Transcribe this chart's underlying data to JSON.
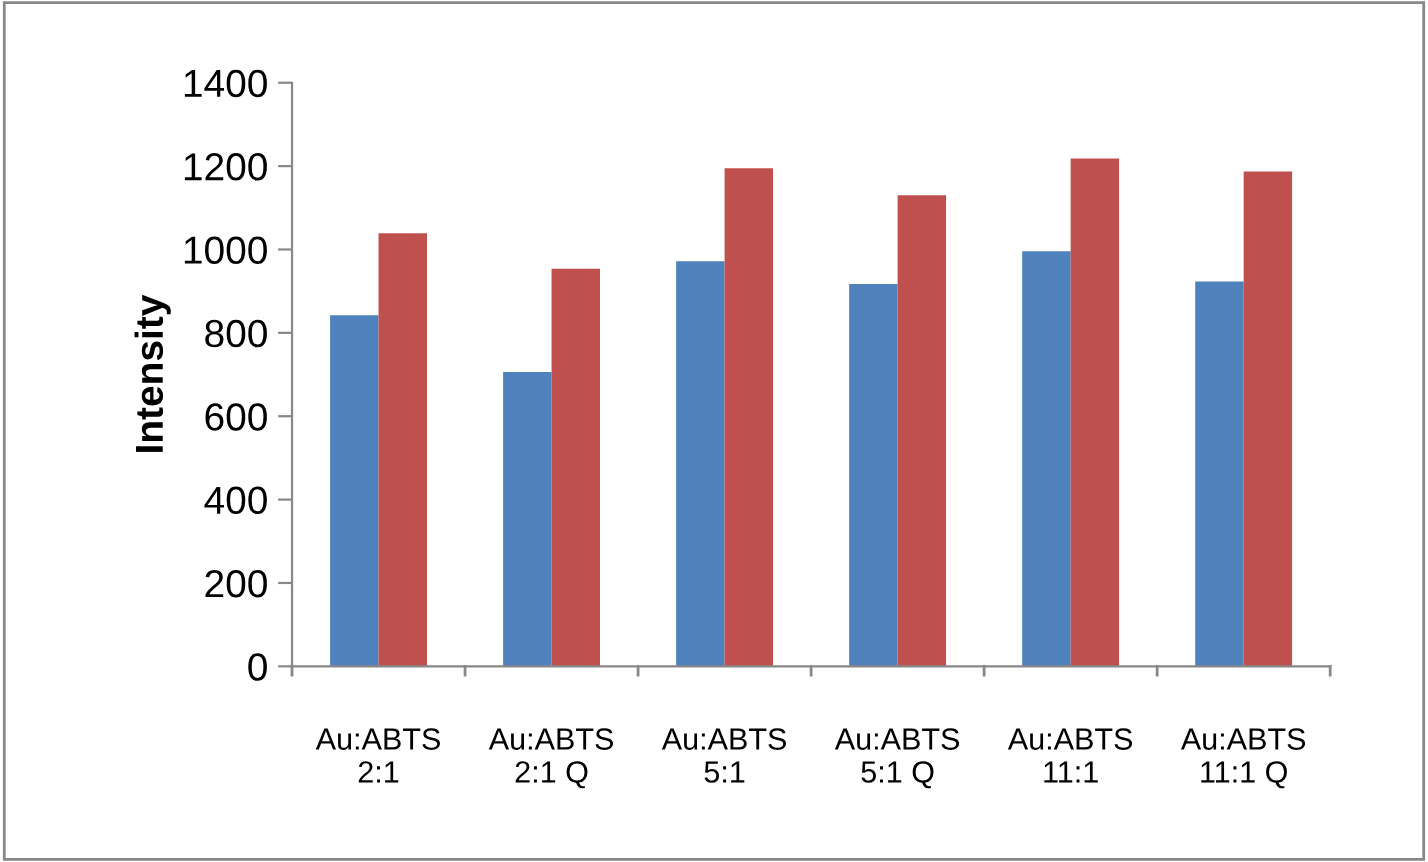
{
  "chart_data": {
    "type": "bar",
    "ylabel": "Intensity",
    "categories": [
      "Au:ABTS\n2:1",
      "Au:ABTS\n2:1 Q",
      "Au:ABTS\n5:1",
      "Au:ABTS\n5:1 Q",
      "Au:ABTS\n11:1",
      "Au:ABTS\n11:1 Q"
    ],
    "series": [
      {
        "color": "#4f81bd",
        "values": [
          842,
          706,
          972,
          917,
          996,
          923
        ]
      },
      {
        "color": "#c0504d",
        "values": [
          1039,
          954,
          1195,
          1130,
          1218,
          1187
        ]
      }
    ],
    "ylim": [
      0,
      1400
    ],
    "yticks": [
      0,
      200,
      400,
      600,
      800,
      1000,
      1200,
      1400
    ],
    "grid": false,
    "legend": false
  }
}
